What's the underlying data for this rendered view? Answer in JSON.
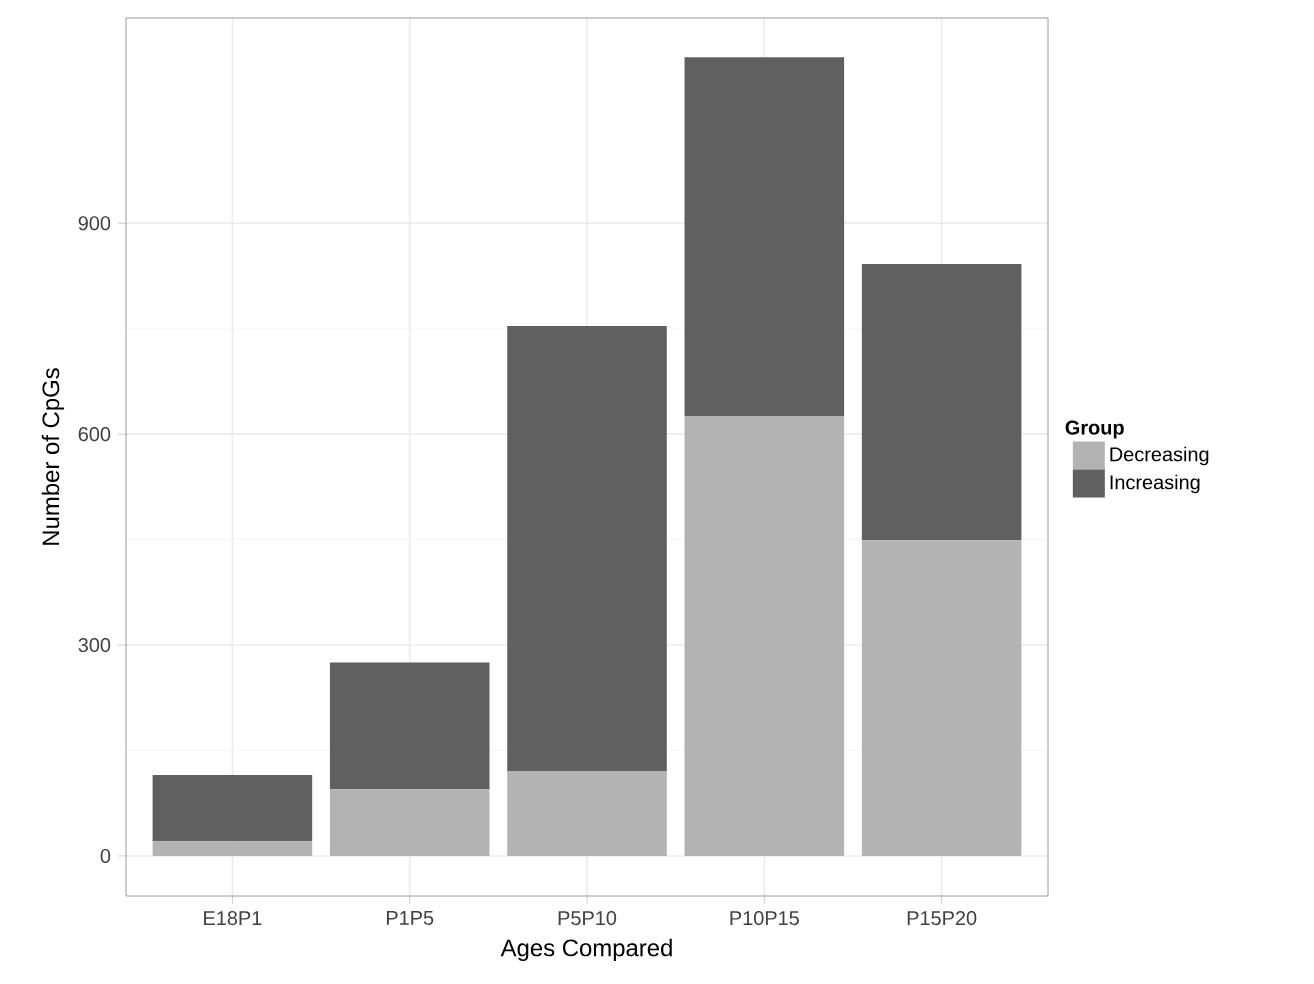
{
  "chart_data": {
    "type": "bar",
    "stacked": true,
    "xlabel": "Ages Compared",
    "ylabel": "Number of CpGs",
    "legend_title": "Group",
    "legend": "right",
    "categories": [
      "E18P1",
      "P1P5",
      "P5P10",
      "P10P15",
      "P15P20"
    ],
    "series": [
      {
        "name": "Decreasing",
        "color": "#b3b3b3",
        "values": [
          21,
          95,
          120,
          626,
          449
        ]
      },
      {
        "name": "Increasing",
        "color": "#606060",
        "values": [
          94,
          180,
          634,
          510,
          393
        ]
      }
    ],
    "ylim": [
      -57,
      1192
    ],
    "yticks": [
      0,
      300,
      600,
      900
    ],
    "grid": true
  }
}
